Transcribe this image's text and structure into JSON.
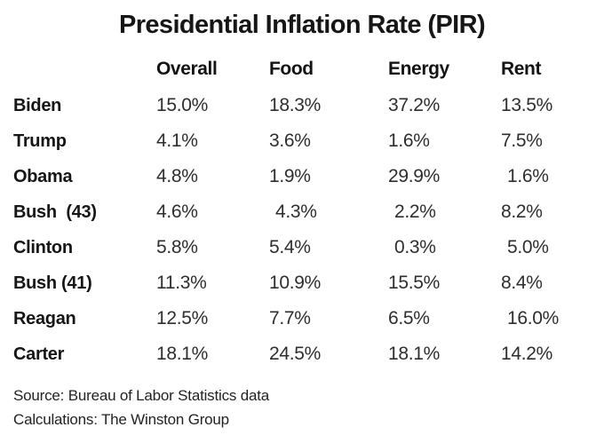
{
  "title": "Presidential Inflation Rate (PIR)",
  "table": {
    "columns": [
      "Overall",
      "Food",
      "Energy",
      "Rent"
    ],
    "rows": [
      {
        "label": "Biden",
        "overall": "15.0%",
        "food": "18.3%",
        "energy": "37.2%",
        "rent": "13.5%"
      },
      {
        "label": "Trump",
        "overall": "4.1%",
        "food": "3.6%",
        "energy": "1.6%",
        "rent": "7.5%"
      },
      {
        "label": "Obama",
        "overall": "4.8%",
        "food": "1.9%",
        "energy": "29.9%",
        "rent": "1.6%"
      },
      {
        "label": "Bush  (43)",
        "overall": "4.6%",
        "food": "4.3%",
        "energy": "2.2%",
        "rent": "8.2%"
      },
      {
        "label": "Clinton",
        "overall": "5.8%",
        "food": "5.4%",
        "energy": "0.3%",
        "rent": "5.0%"
      },
      {
        "label": "Bush (41)",
        "overall": "11.3%",
        "food": "10.9%",
        "energy": "15.5%",
        "rent": "8.4%"
      },
      {
        "label": "Reagan",
        "overall": "12.5%",
        "food": "7.7%",
        "energy": "6.5%",
        "rent": "16.0%"
      },
      {
        "label": "Carter",
        "overall": "18.1%",
        "food": "24.5%",
        "energy": "18.1%",
        "rent": "14.2%"
      }
    ]
  },
  "footer": {
    "source": "Source: Bureau of Labor Statistics data",
    "calculations": "Calculations: The Winston Group"
  },
  "colors": {
    "background": "#ffffff",
    "heading_text": "#161616",
    "value_text": "#2e2e2e"
  },
  "chart_data": {
    "type": "table",
    "title": "Presidential Inflation Rate (PIR)",
    "columns": [
      "Overall",
      "Food",
      "Energy",
      "Rent"
    ],
    "categories": [
      "Biden",
      "Trump",
      "Obama",
      "Bush (43)",
      "Clinton",
      "Bush (41)",
      "Reagan",
      "Carter"
    ],
    "series": [
      {
        "name": "Overall",
        "values": [
          15.0,
          4.1,
          4.8,
          4.6,
          5.8,
          11.3,
          12.5,
          18.1
        ]
      },
      {
        "name": "Food",
        "values": [
          18.3,
          3.6,
          1.9,
          4.3,
          5.4,
          10.9,
          7.7,
          24.5
        ]
      },
      {
        "name": "Energy",
        "values": [
          37.2,
          1.6,
          29.9,
          2.2,
          0.3,
          15.5,
          6.5,
          18.1
        ]
      },
      {
        "name": "Rent",
        "values": [
          13.5,
          7.5,
          1.6,
          8.2,
          5.0,
          8.4,
          16.0,
          14.2
        ]
      }
    ],
    "unit": "%",
    "notes": [
      "Source: Bureau of Labor Statistics data",
      "Calculations: The Winston Group"
    ]
  }
}
